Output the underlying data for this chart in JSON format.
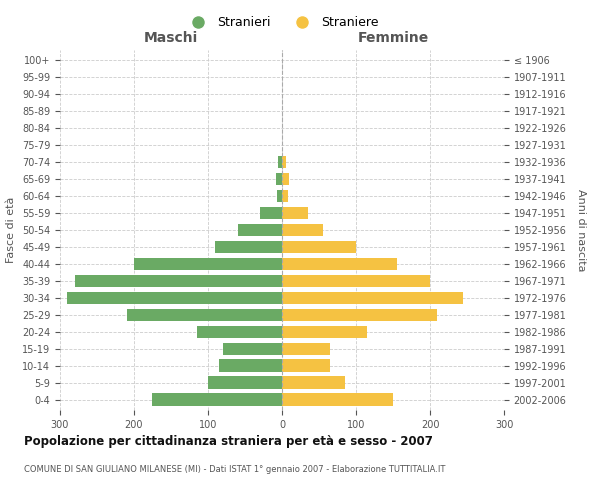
{
  "age_groups": [
    "0-4",
    "5-9",
    "10-14",
    "15-19",
    "20-24",
    "25-29",
    "30-34",
    "35-39",
    "40-44",
    "45-49",
    "50-54",
    "55-59",
    "60-64",
    "65-69",
    "70-74",
    "75-79",
    "80-84",
    "85-89",
    "90-94",
    "95-99",
    "100+"
  ],
  "birth_years": [
    "2002-2006",
    "1997-2001",
    "1992-1996",
    "1987-1991",
    "1982-1986",
    "1977-1981",
    "1972-1976",
    "1967-1971",
    "1962-1966",
    "1957-1961",
    "1952-1956",
    "1947-1951",
    "1942-1946",
    "1937-1941",
    "1932-1936",
    "1927-1931",
    "1922-1926",
    "1917-1921",
    "1912-1916",
    "1907-1911",
    "≤ 1906"
  ],
  "males": [
    175,
    100,
    85,
    80,
    115,
    210,
    290,
    280,
    200,
    90,
    60,
    30,
    7,
    8,
    5,
    0,
    0,
    0,
    0,
    0,
    0
  ],
  "females": [
    150,
    85,
    65,
    65,
    115,
    210,
    245,
    200,
    155,
    100,
    55,
    35,
    8,
    10,
    5,
    0,
    0,
    0,
    0,
    0,
    0
  ],
  "male_color": "#6aaa64",
  "female_color": "#f5c242",
  "male_label": "Stranieri",
  "female_label": "Straniere",
  "title": "Popolazione per cittadinanza straniera per età e sesso - 2007",
  "subtitle": "COMUNE DI SAN GIULIANO MILANESE (MI) - Dati ISTAT 1° gennaio 2007 - Elaborazione TUTTITALIA.IT",
  "header_left": "Maschi",
  "header_right": "Femmine",
  "ylabel_left": "Fasce di età",
  "ylabel_right": "Anni di nascita",
  "xlim": 300,
  "background_color": "#ffffff",
  "grid_color": "#cccccc",
  "text_color": "#555555"
}
